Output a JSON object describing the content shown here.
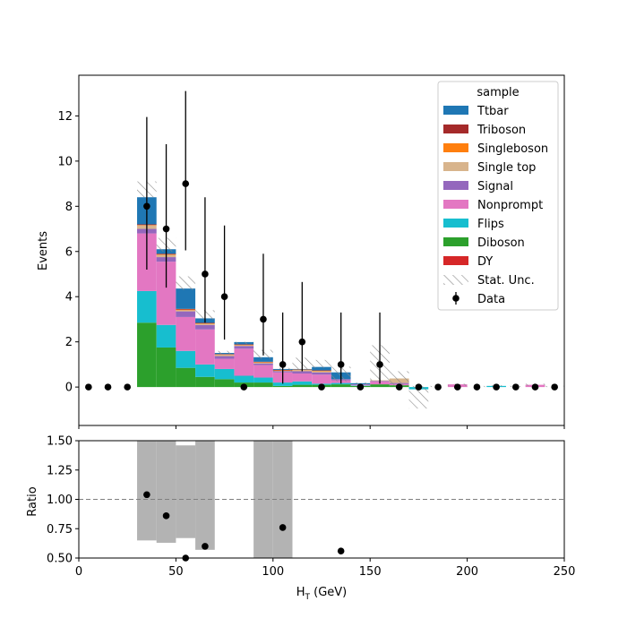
{
  "chart_data": [
    {
      "type": "stacked-histogram",
      "ylabel": "Events",
      "ylim": [
        -1.7,
        13.8
      ],
      "xlim": [
        0,
        250
      ],
      "yticks": [
        0,
        2,
        4,
        6,
        8,
        10,
        12
      ],
      "bin_edges": [
        30,
        40,
        50,
        60,
        70,
        80,
        90,
        100,
        110,
        120,
        130,
        140,
        150,
        160,
        170,
        180,
        190,
        200,
        210,
        220,
        230,
        240,
        250
      ],
      "legend_title": "sample",
      "legend_position": "top-right",
      "series": [
        {
          "name": "DY",
          "color": "#d62728",
          "values": [
            0,
            0,
            0,
            0,
            0,
            0,
            0,
            0,
            0,
            0,
            0,
            0,
            0,
            0,
            0,
            0,
            0,
            0,
            0,
            0,
            0,
            0
          ]
        },
        {
          "name": "Diboson",
          "color": "#2ca02c",
          "values": [
            2.85,
            1.75,
            0.85,
            0.45,
            0.35,
            0.2,
            0.2,
            0.05,
            0.1,
            0.1,
            0.12,
            0.05,
            0.12,
            0.08,
            0,
            0,
            0,
            0,
            0,
            0,
            0,
            0
          ]
        },
        {
          "name": "Flips",
          "color": "#17becf",
          "values": [
            1.4,
            1.0,
            0.75,
            0.55,
            0.45,
            0.3,
            0.22,
            0.15,
            0.15,
            0.05,
            0.06,
            0.02,
            0,
            0,
            0,
            0,
            0,
            0,
            0.05,
            0,
            0,
            0
          ]
        },
        {
          "name": "Nonprompt",
          "color": "#e377c2",
          "values": [
            2.55,
            2.8,
            1.5,
            1.55,
            0.45,
            1.2,
            0.55,
            0.45,
            0.35,
            0.4,
            0.12,
            0.03,
            0.12,
            0.05,
            0,
            0,
            0.12,
            0,
            0,
            0,
            0.1,
            0
          ]
        },
        {
          "name": "Signal",
          "color": "#9467bd",
          "values": [
            0.2,
            0.2,
            0.25,
            0.2,
            0.12,
            0.12,
            0.07,
            0.05,
            0.1,
            0.1,
            0.05,
            0.02,
            0.03,
            0.05,
            0,
            0,
            0,
            0,
            0,
            0,
            0,
            0
          ]
        },
        {
          "name": "Single top",
          "color": "#d8b48c",
          "values": [
            0.15,
            0.1,
            0.05,
            0.05,
            0.05,
            0.03,
            0.04,
            0.02,
            0.05,
            0.05,
            0,
            0,
            0.03,
            0.2,
            0,
            0,
            0,
            0,
            0,
            0,
            0,
            0
          ]
        },
        {
          "name": "Singleboson",
          "color": "#ff7f0e",
          "values": [
            0.02,
            0.02,
            0.03,
            0.02,
            0.02,
            0.02,
            0.02,
            0.02,
            0.02,
            0.02,
            0,
            0,
            0,
            0,
            0,
            0,
            0,
            0,
            0,
            0,
            0,
            0
          ]
        },
        {
          "name": "Triboson",
          "color": "#a52a2a",
          "values": [
            0.03,
            0.03,
            0.03,
            0.02,
            0.02,
            0.02,
            0.02,
            0.02,
            0.02,
            0.02,
            0,
            0,
            0,
            0,
            0,
            0,
            0,
            0,
            0,
            0,
            0,
            0
          ]
        },
        {
          "name": "Ttbar",
          "color": "#1f77b4",
          "values": [
            1.2,
            0.2,
            0.9,
            0.2,
            0.05,
            0.1,
            0.2,
            0.04,
            0.01,
            0.15,
            0.3,
            0.05,
            0,
            0,
            0,
            0,
            0,
            0,
            0,
            0,
            0,
            0
          ]
        }
      ],
      "negative_bins": [
        {
          "low": 170,
          "high": 180,
          "value": -0.1,
          "color": "#17becf"
        }
      ],
      "stat_unc": {
        "name": "Stat. Unc.",
        "bins": [
          {
            "low": 30,
            "high": 40,
            "lo": 8.4,
            "hi": 9.1
          },
          {
            "low": 40,
            "high": 50,
            "lo": 6.0,
            "hi": 6.6
          },
          {
            "low": 50,
            "high": 60,
            "lo": 4.3,
            "hi": 4.9
          },
          {
            "low": 60,
            "high": 70,
            "lo": 3.0,
            "hi": 3.4
          },
          {
            "low": 70,
            "high": 80,
            "lo": 1.45,
            "hi": 1.6
          },
          {
            "low": 80,
            "high": 90,
            "lo": 1.9,
            "hi": 2.0
          },
          {
            "low": 90,
            "high": 100,
            "lo": 1.25,
            "hi": 1.65
          },
          {
            "low": 100,
            "high": 110,
            "lo": 0.7,
            "hi": 0.85
          },
          {
            "low": 110,
            "high": 120,
            "lo": 0.8,
            "hi": 1.3
          },
          {
            "low": 120,
            "high": 130,
            "lo": 0.85,
            "hi": 1.2
          },
          {
            "low": 130,
            "high": 140,
            "lo": 0.25,
            "hi": 0.9
          },
          {
            "low": 140,
            "high": 150,
            "lo": 0.1,
            "hi": 0.2
          },
          {
            "low": 150,
            "high": 160,
            "lo": 0.3,
            "hi": 1.85
          },
          {
            "low": 160,
            "high": 170,
            "lo": 0.05,
            "hi": 0.7
          },
          {
            "low": 170,
            "high": 180,
            "lo": -0.95,
            "hi": 0.05
          },
          {
            "low": 180,
            "high": 190,
            "lo": 0.0,
            "hi": 0.05
          },
          {
            "low": 190,
            "high": 200,
            "lo": 0.05,
            "hi": 0.15
          },
          {
            "low": 200,
            "high": 210,
            "lo": 0.0,
            "hi": 0.05
          },
          {
            "low": 210,
            "high": 220,
            "lo": 0.03,
            "hi": 0.08
          },
          {
            "low": 220,
            "high": 230,
            "lo": 0.0,
            "hi": 0.05
          },
          {
            "low": 230,
            "high": 240,
            "lo": 0.05,
            "hi": 0.15
          },
          {
            "low": 240,
            "high": 250,
            "lo": 0.0,
            "hi": 0.05
          }
        ]
      },
      "data_points": {
        "name": "Data",
        "x": [
          5,
          15,
          25,
          35,
          45,
          55,
          65,
          75,
          85,
          95,
          105,
          115,
          125,
          135,
          145,
          155,
          165,
          175,
          185,
          195,
          205,
          215,
          225,
          235,
          245
        ],
        "y": [
          0,
          0,
          0,
          8,
          7,
          9,
          5,
          4,
          0,
          3,
          1,
          2,
          0,
          1,
          0,
          1,
          0,
          0,
          0,
          0,
          0,
          0,
          0,
          0,
          0
        ],
        "err_lo": [
          0,
          0,
          0,
          2.8,
          2.6,
          2.95,
          2.15,
          1.9,
          0,
          1.6,
          0.85,
          1.3,
          0,
          0.85,
          0,
          0.85,
          0,
          0,
          0,
          0,
          0,
          0,
          0,
          0,
          0
        ],
        "err_hi": [
          0,
          0,
          0,
          3.95,
          3.75,
          4.1,
          3.4,
          3.15,
          0,
          2.9,
          2.3,
          2.65,
          0,
          2.3,
          0,
          2.3,
          0,
          0,
          0,
          0,
          0,
          0,
          0,
          0,
          0
        ]
      }
    },
    {
      "type": "ratio",
      "ylabel": "Ratio",
      "xlabel_main": "H",
      "xlabel_sub": "T",
      "xlabel_unit": " (GeV)",
      "ylim": [
        0.5,
        1.5
      ],
      "xlim": [
        0,
        250
      ],
      "yticks": [
        "0.50",
        "0.75",
        "1.00",
        "1.25",
        "1.50"
      ],
      "xticks": [
        "0",
        "50",
        "100",
        "150",
        "200",
        "250"
      ],
      "reference_line": 1.0,
      "unc_bands": [
        {
          "low": 30,
          "high": 40,
          "lo": 0.65,
          "hi": 1.5
        },
        {
          "low": 40,
          "high": 50,
          "lo": 0.63,
          "hi": 1.5
        },
        {
          "low": 50,
          "high": 60,
          "lo": 0.67,
          "hi": 1.46
        },
        {
          "low": 60,
          "high": 70,
          "lo": 0.57,
          "hi": 1.5
        },
        {
          "low": 90,
          "high": 100,
          "lo": 0.5,
          "hi": 1.5
        },
        {
          "low": 100,
          "high": 110,
          "lo": 0.5,
          "hi": 1.5
        }
      ],
      "points": {
        "x": [
          35,
          45,
          55,
          65,
          105,
          135
        ],
        "y": [
          1.04,
          0.86,
          0.5,
          0.6,
          0.76,
          0.56
        ]
      }
    }
  ]
}
